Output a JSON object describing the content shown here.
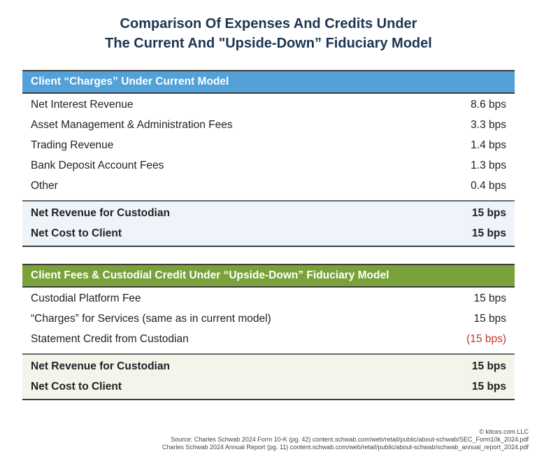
{
  "title": {
    "line1": "Comparison Of Expenses And Credits Under",
    "line2": "The Current And \"Upside-Down” Fiduciary Model"
  },
  "current_model": {
    "header": "Client “Charges” Under Current Model",
    "header_color": "#52a1d8",
    "rows": [
      {
        "label": "Net Interest Revenue",
        "value": "8.6 bps"
      },
      {
        "label": "Asset Management & Administration Fees",
        "value": "3.3 bps"
      },
      {
        "label": "Trading Revenue",
        "value": "1.4 bps"
      },
      {
        "label": "Bank Deposit Account Fees",
        "value": "1.3 bps"
      },
      {
        "label": "Other",
        "value": "0.4 bps"
      }
    ],
    "totals": [
      {
        "label": "Net Revenue for Custodian",
        "value": "15 bps"
      },
      {
        "label": "Net Cost to Client",
        "value": "15 bps"
      }
    ]
  },
  "upside_down_model": {
    "header": "Client Fees & Custodial Credit Under “Upside-Down” Fiduciary Model",
    "header_color": "#79a23b",
    "rows": [
      {
        "label": "Custodial Platform Fee",
        "value": "15 bps"
      },
      {
        "label": "“Charges” for Services (same as in current model)",
        "value": "15 bps"
      },
      {
        "label": "Statement Credit from Custodian",
        "value": "(15 bps)",
        "negative_color": "#c0392b"
      }
    ],
    "totals": [
      {
        "label": "Net Revenue for Custodian",
        "value": "15 bps"
      },
      {
        "label": "Net Cost to Client",
        "value": "15 bps"
      }
    ]
  },
  "footer": {
    "copyright": "© kitces.com LLC",
    "source1": "Source: Charles Schwab 2024 Form 10-K (pg. 42) content.schwab.com/web/retail/public/about-schwab/SEC_Form10k_2024.pdf",
    "source2": "Charles Schwab 2024 Annual Report (pg. 11) content.schwab.com/web/retail/public/about-schwab/schwab_annual_report_2024.pdf"
  }
}
